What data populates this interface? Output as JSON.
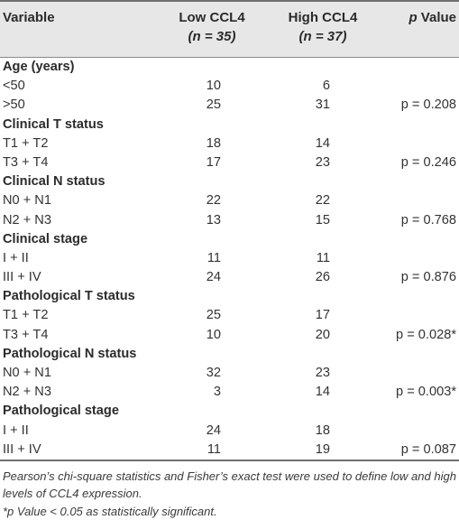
{
  "header": {
    "variable": "Variable",
    "low_label": "Low CCL4",
    "low_n": "(n = 35)",
    "high_label": "High CCL4",
    "high_n": "(n = 37)",
    "p_label_italic": "p",
    "p_label_rest": " Value"
  },
  "rows": [
    {
      "kind": "group",
      "label": "Age (years)"
    },
    {
      "kind": "data",
      "label": "<50",
      "low": "10",
      "high": "6",
      "p": ""
    },
    {
      "kind": "data",
      "label": ">50",
      "low": "25",
      "high": "31",
      "p": "p = 0.208"
    },
    {
      "kind": "group",
      "label": "Clinical T status"
    },
    {
      "kind": "data",
      "label": "T1 + T2",
      "low": "18",
      "high": "14",
      "p": ""
    },
    {
      "kind": "data",
      "label": "T3 + T4",
      "low": "17",
      "high": "23",
      "p": "p = 0.246"
    },
    {
      "kind": "group",
      "label": "Clinical N status"
    },
    {
      "kind": "data",
      "label": "N0 + N1",
      "low": "22",
      "high": "22",
      "p": ""
    },
    {
      "kind": "data",
      "label": "N2 + N3",
      "low": "13",
      "high": "15",
      "p": "p = 0.768"
    },
    {
      "kind": "group",
      "label": "Clinical stage"
    },
    {
      "kind": "data",
      "label": "I + II",
      "low": "11",
      "high": "11",
      "p": ""
    },
    {
      "kind": "data",
      "label": "III + IV",
      "low": "24",
      "high": "26",
      "p": "p = 0.876"
    },
    {
      "kind": "group",
      "label": "Pathological T status"
    },
    {
      "kind": "data",
      "label": "T1 + T2",
      "low": "25",
      "high": "17",
      "p": ""
    },
    {
      "kind": "data",
      "label": "T3 + T4",
      "low": "10",
      "high": "20",
      "p": "p = 0.028*"
    },
    {
      "kind": "group",
      "label": "Pathological N status"
    },
    {
      "kind": "data",
      "label": "N0 + N1",
      "low": "32",
      "high": "23",
      "p": ""
    },
    {
      "kind": "data",
      "label": "N2 + N3",
      "low": "3",
      "high": "14",
      "p": "p = 0.003*"
    },
    {
      "kind": "group",
      "label": "Pathological stage"
    },
    {
      "kind": "data",
      "label": "I + II",
      "low": "24",
      "high": "18",
      "p": ""
    },
    {
      "kind": "data",
      "label": "III + IV",
      "low": "11",
      "high": "19",
      "p": "p = 0.087"
    }
  ],
  "footnotes": {
    "line1": "Pearson’s chi-square statistics and Fisher’s exact test were used to define low and high levels of CCL4 expression.",
    "line2": "*p Value < 0.05 as statistically significant."
  }
}
